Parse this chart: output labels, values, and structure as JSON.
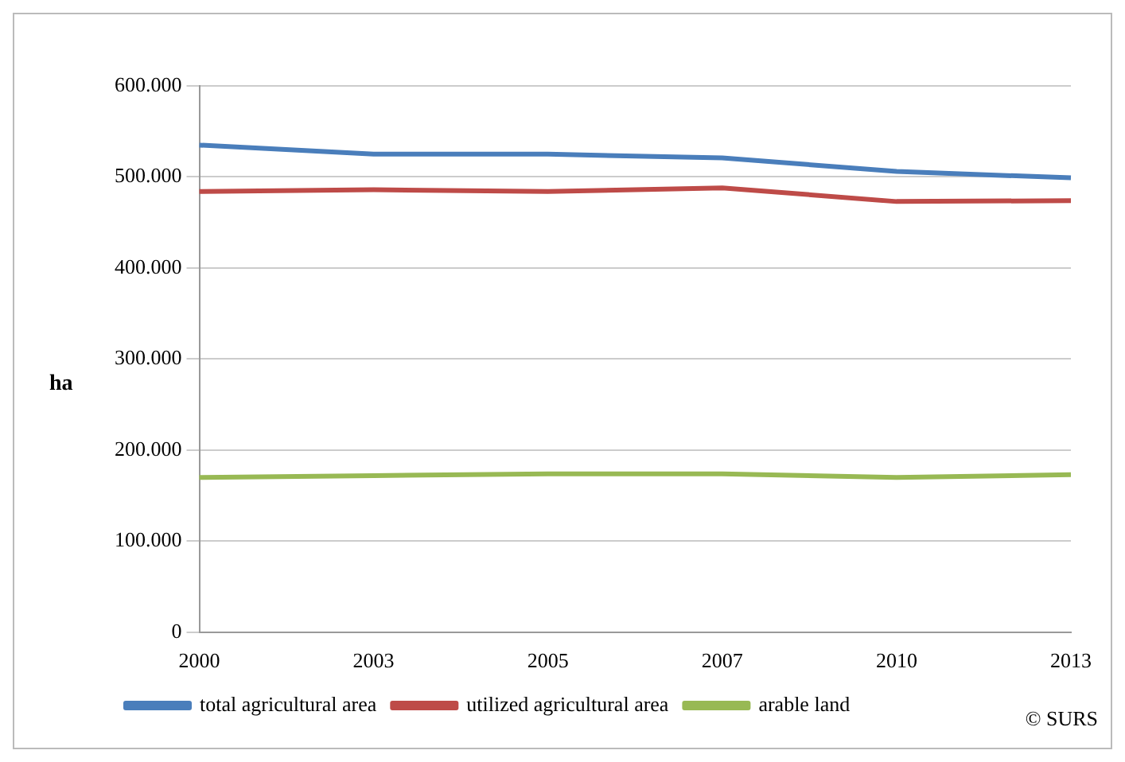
{
  "chart_data": {
    "type": "line",
    "ylabel": "ha",
    "categories": [
      "2000",
      "2003",
      "2005",
      "2007",
      "2010",
      "2013"
    ],
    "series": [
      {
        "name": "total agricultural area",
        "color": "#4a7ebb",
        "values": [
          535000,
          525000,
          525000,
          521000,
          506000,
          499000
        ]
      },
      {
        "name": "utilized agricultural area",
        "color": "#be4b48",
        "values": [
          484000,
          486000,
          484000,
          488000,
          473000,
          474000
        ]
      },
      {
        "name": "arable land",
        "color": "#98b954",
        "values": [
          170000,
          172000,
          174000,
          174000,
          170000,
          173000
        ]
      }
    ],
    "ylim": [
      0,
      600000
    ],
    "yticks": [
      0,
      {
        "value": 100000,
        "label": "100.000"
      },
      {
        "value": 200000,
        "label": "200.000"
      },
      {
        "value": 300000,
        "label": "300.000"
      },
      {
        "value": 400000,
        "label": "400.000"
      },
      {
        "value": 500000,
        "label": "500.000"
      },
      {
        "value": 600000,
        "label": "600.000"
      }
    ],
    "grid": "y",
    "legend": "bottom",
    "marker": "none",
    "line_style": "solid",
    "annotations": [
      "© SURS"
    ]
  }
}
